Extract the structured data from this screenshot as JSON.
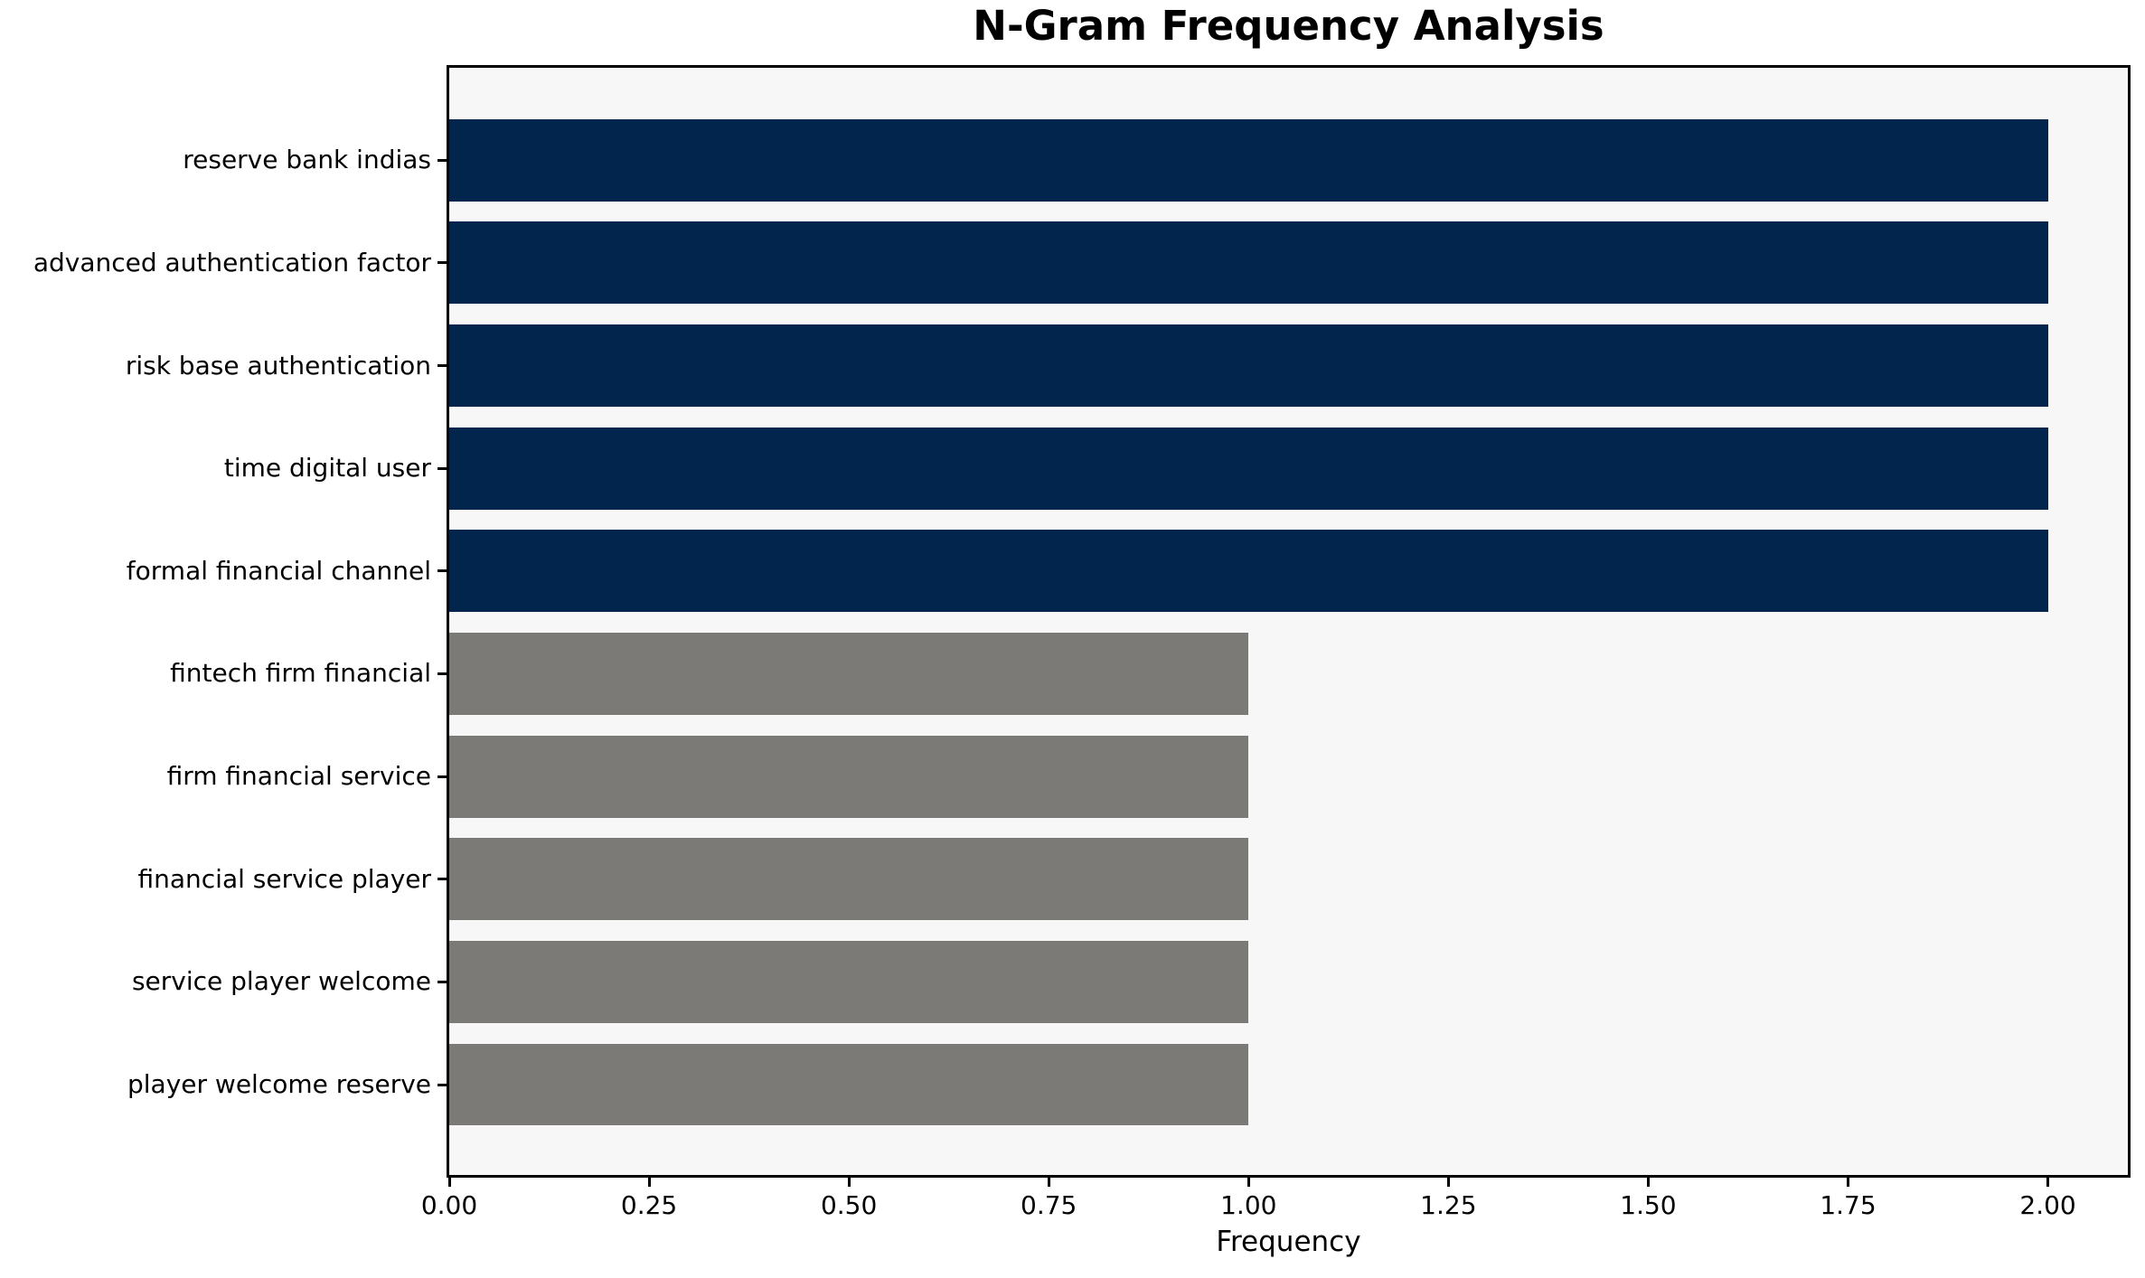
{
  "chart_data": {
    "type": "bar",
    "orientation": "horizontal",
    "title": "N-Gram Frequency Analysis",
    "xlabel": "Frequency",
    "ylabel": "",
    "categories": [
      "reserve bank indias",
      "advanced authentication factor",
      "risk base authentication",
      "time digital user",
      "formal financial channel",
      "fintech firm financial",
      "firm financial service",
      "financial service player",
      "service player welcome",
      "player welcome reserve"
    ],
    "values": [
      2,
      2,
      2,
      2,
      2,
      1,
      1,
      1,
      1,
      1
    ],
    "bar_colors": [
      "#02254d",
      "#02254d",
      "#02254d",
      "#02254d",
      "#02254d",
      "#7b7a77",
      "#7b7a77",
      "#7b7a77",
      "#7b7a77",
      "#7b7a77"
    ],
    "xlim": [
      0,
      2.1
    ],
    "xticks": {
      "values": [
        0,
        0.25,
        0.5,
        0.75,
        1.0,
        1.25,
        1.5,
        1.75,
        2.0
      ],
      "labels": [
        "0.00",
        "0.25",
        "0.50",
        "0.75",
        "1.00",
        "1.25",
        "1.50",
        "1.75",
        "2.00"
      ]
    },
    "grid": false,
    "legend": "none",
    "colors": {
      "primary_bar": "#02254d",
      "secondary_bar": "#7b7a77",
      "plot_background": "#f7f7f7",
      "figure_background": "#ffffff",
      "axis": "#000000",
      "text": "#000000"
    }
  }
}
